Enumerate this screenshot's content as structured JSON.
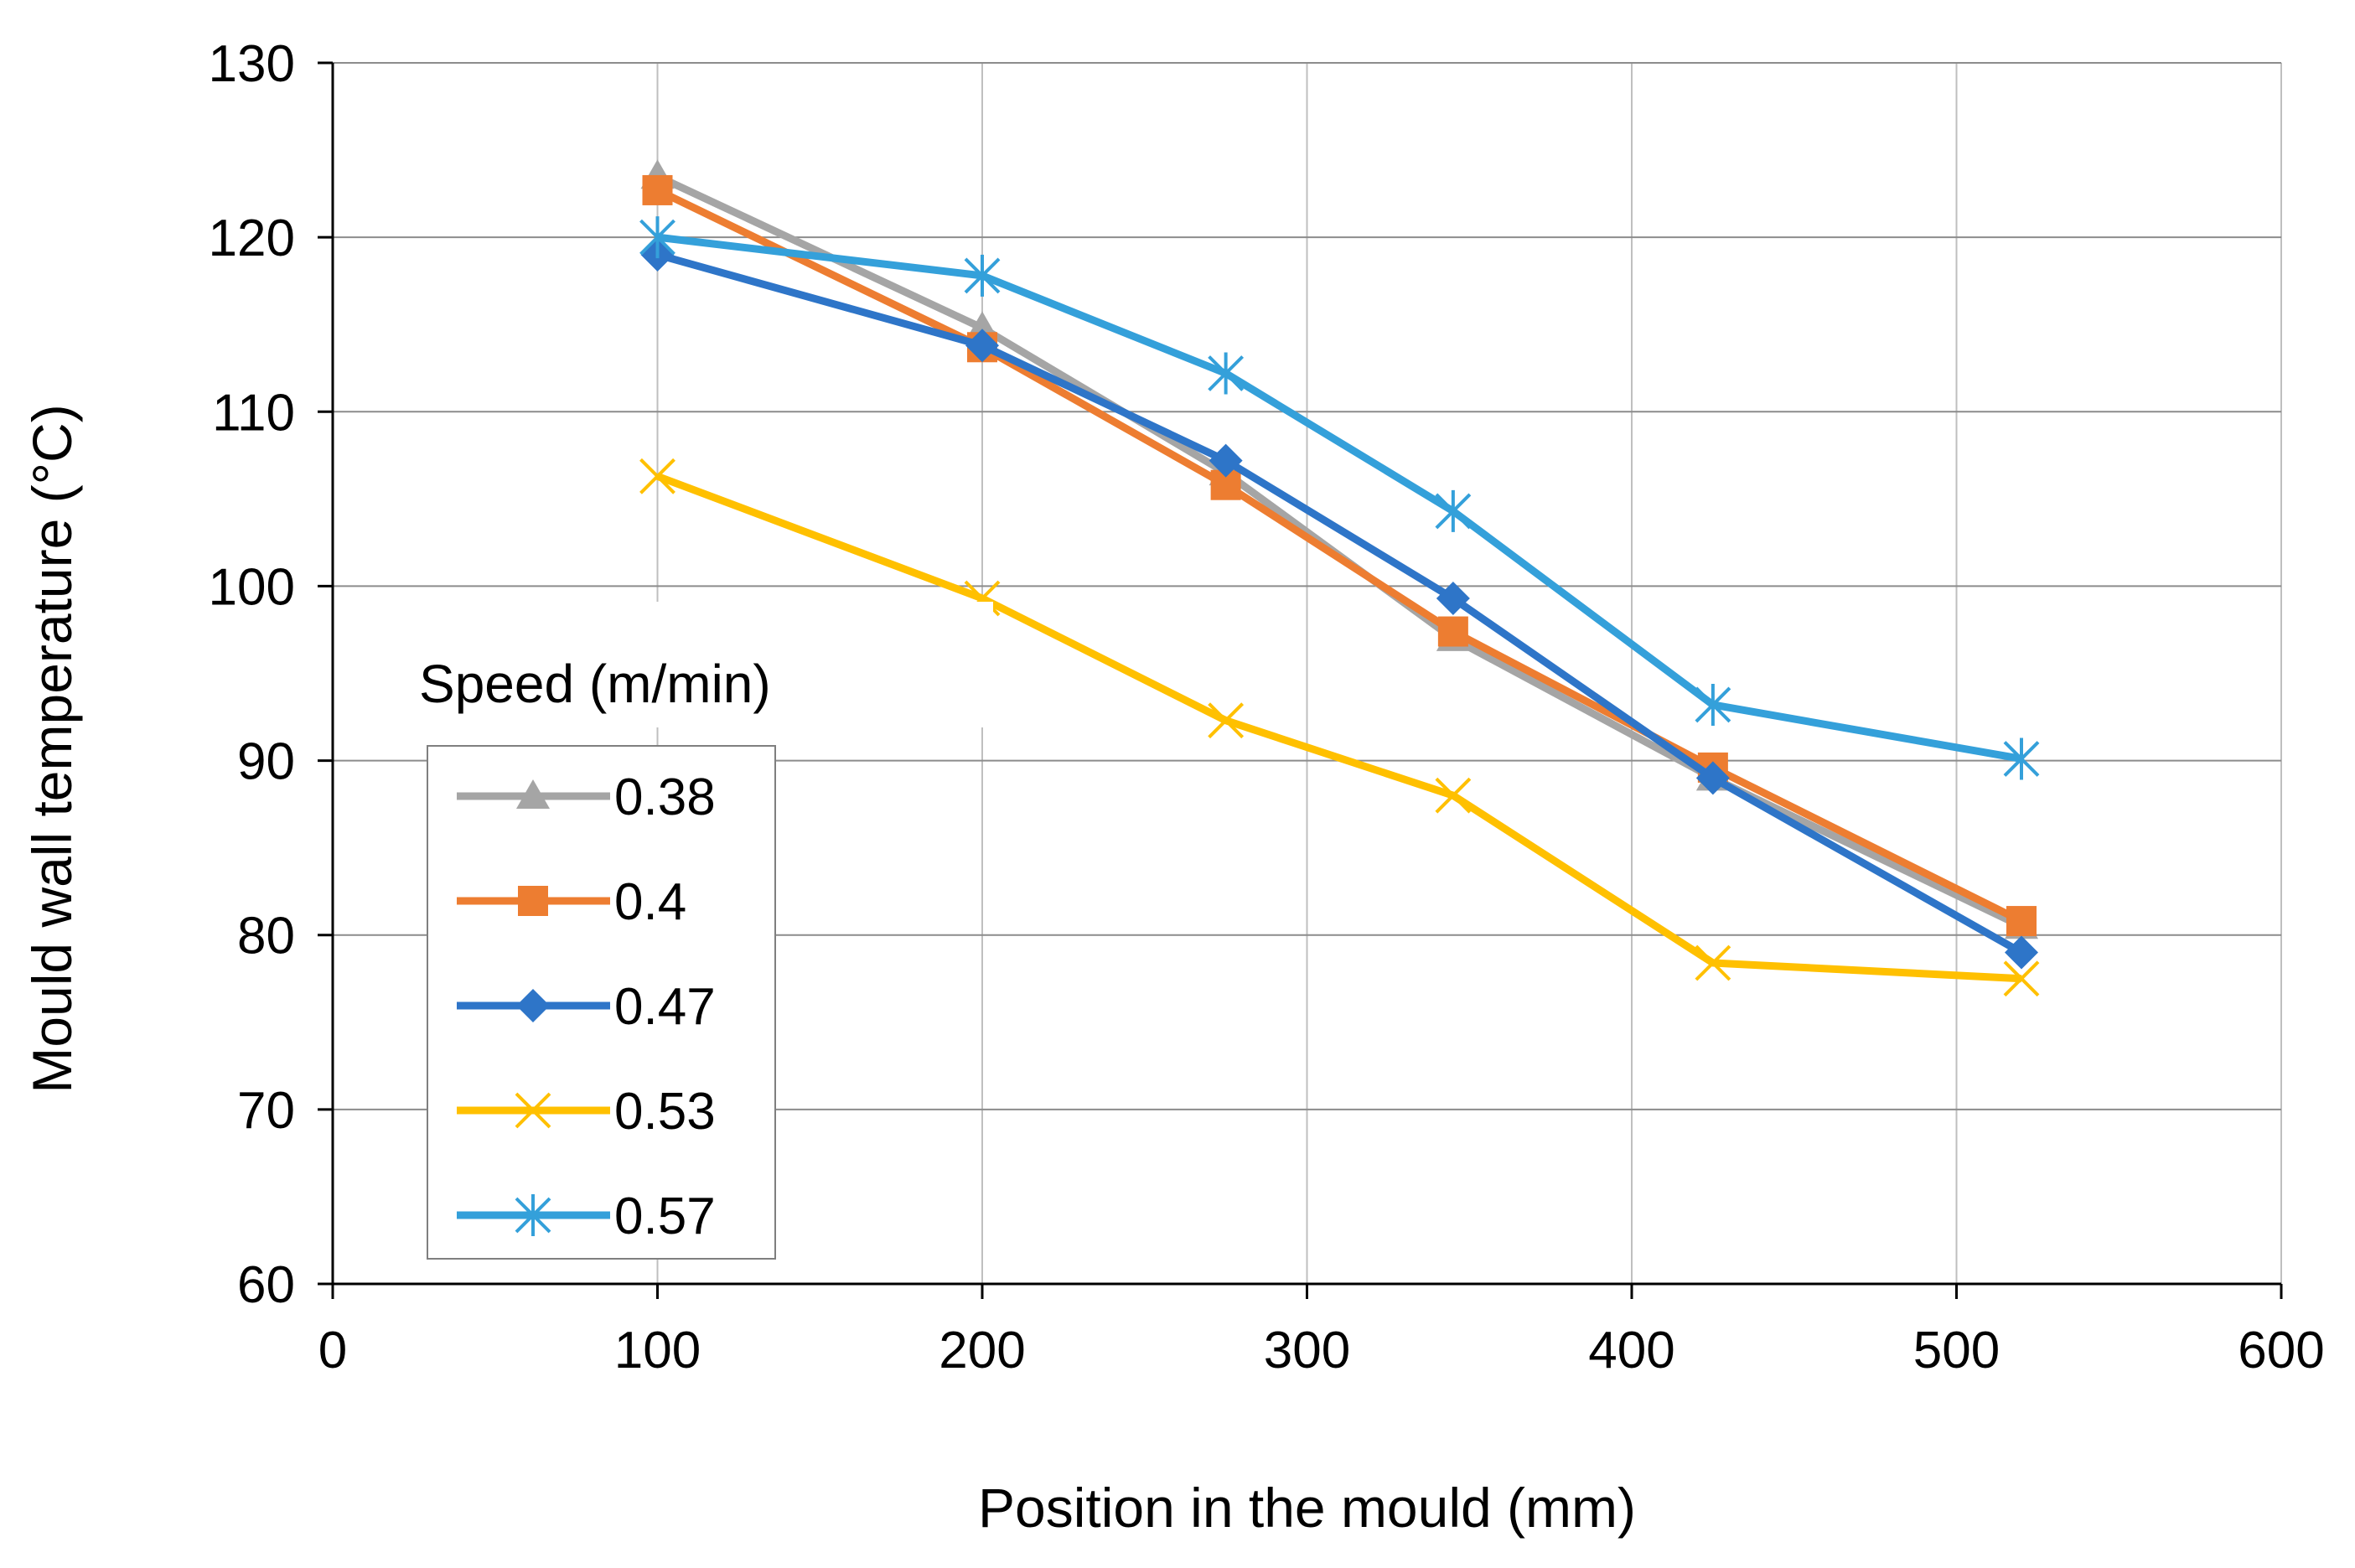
{
  "chart_data": {
    "type": "line",
    "title": "",
    "xlabel": "Position in the mould (mm)",
    "ylabel": "Mould wall temperature (°C)",
    "xlim": [
      0,
      600
    ],
    "ylim": [
      60,
      130
    ],
    "xticks": [
      0,
      100,
      200,
      300,
      400,
      500,
      600
    ],
    "yticks": [
      60,
      70,
      80,
      90,
      100,
      110,
      120,
      130
    ],
    "grid": true,
    "legend_title": "Speed (m/min)",
    "legend_position": "bottom-left",
    "x": [
      100,
      200,
      275,
      345,
      425,
      520
    ],
    "series": [
      {
        "name": "0.38",
        "marker": "triangle",
        "color": "#A5A5A5",
        "values": [
          123.5,
          114.8,
          106.5,
          97.0,
          89.0,
          80.5
        ]
      },
      {
        "name": "0.4",
        "marker": "square",
        "color": "#ED7D31",
        "values": [
          122.7,
          113.7,
          105.8,
          97.4,
          89.6,
          80.8
        ]
      },
      {
        "name": "0.47",
        "marker": "diamond",
        "color": "#2E75C8",
        "values": [
          119.0,
          113.8,
          107.2,
          99.3,
          89.0,
          79.0
        ]
      },
      {
        "name": "0.53",
        "marker": "x",
        "color": "#FFC000",
        "values": [
          106.3,
          99.3,
          92.3,
          88.0,
          78.4,
          77.5
        ]
      },
      {
        "name": "0.57",
        "marker": "star",
        "color": "#34A0DA",
        "values": [
          120.0,
          117.8,
          112.2,
          104.3,
          93.2,
          90.1
        ]
      }
    ]
  }
}
